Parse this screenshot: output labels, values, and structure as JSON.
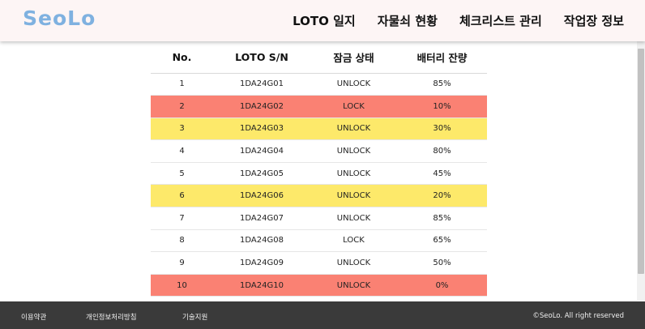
{
  "header": {
    "logo": "SeoLo",
    "nav": [
      "LOTO 일지",
      "자물쇠 현황",
      "체크리스트 관리",
      "작업장 정보"
    ]
  },
  "table": {
    "columns": [
      "No.",
      "LOTO S/N",
      "잠금 상태",
      "배터리 잔량"
    ],
    "rows": [
      {
        "no": "1",
        "sn": "1DA24G01",
        "status": "UNLOCK",
        "battery": "85%",
        "highlight": "none"
      },
      {
        "no": "2",
        "sn": "1DA24G02",
        "status": "LOCK",
        "battery": "10%",
        "highlight": "red"
      },
      {
        "no": "3",
        "sn": "1DA24G03",
        "status": "UNLOCK",
        "battery": "30%",
        "highlight": "yellow"
      },
      {
        "no": "4",
        "sn": "1DA24G04",
        "status": "UNLOCK",
        "battery": "80%",
        "highlight": "none"
      },
      {
        "no": "5",
        "sn": "1DA24G05",
        "status": "UNLOCK",
        "battery": "45%",
        "highlight": "none"
      },
      {
        "no": "6",
        "sn": "1DA24G06",
        "status": "UNLOCK",
        "battery": "20%",
        "highlight": "yellow"
      },
      {
        "no": "7",
        "sn": "1DA24G07",
        "status": "UNLOCK",
        "battery": "85%",
        "highlight": "none"
      },
      {
        "no": "8",
        "sn": "1DA24G08",
        "status": "LOCK",
        "battery": "65%",
        "highlight": "none"
      },
      {
        "no": "9",
        "sn": "1DA24G09",
        "status": "UNLOCK",
        "battery": "50%",
        "highlight": "none"
      },
      {
        "no": "10",
        "sn": "1DA24G10",
        "status": "UNLOCK",
        "battery": "0%",
        "highlight": "red"
      }
    ]
  },
  "colors": {
    "logo": "#7fb1e0",
    "red": "#fa8173",
    "yellow": "#fde96a",
    "header_bg": "#fdf5f5",
    "footer_bg": "#3a3a3a"
  },
  "footer": {
    "links": [
      "이용약관",
      "개인정보처리방침",
      "기술지원"
    ],
    "copyright": "©SeoLo. All right reserved"
  }
}
